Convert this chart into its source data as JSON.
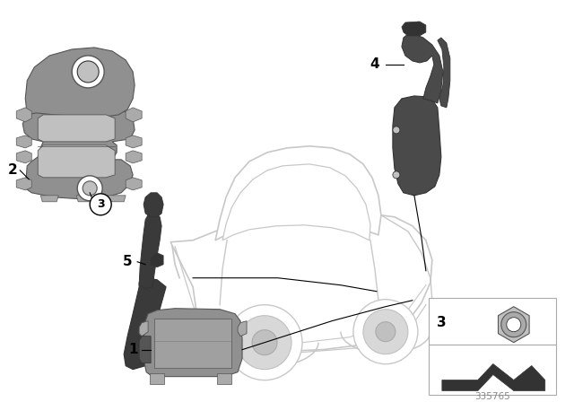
{
  "bg_color": "#ffffff",
  "fig_width": 6.4,
  "fig_height": 4.48,
  "dpi": 100,
  "part_number": "335765",
  "lc": "#000000",
  "car_edge": "#c8c8c8",
  "gray1": "#909090",
  "gray2": "#aaaaaa",
  "gray3": "#c0c0c0",
  "gray4": "#d8d8d8",
  "dark1": "#555555",
  "dark2": "#333333",
  "dark3": "#222222",
  "part4_main": "#4a4a4a",
  "part5_main": "#3a3a3a",
  "part1_main": "#909090",
  "part1_face": "#a0a0a0",
  "part2_main": "#909090",
  "part2_light": "#b8b8b8",
  "part2_dark": "#707070"
}
